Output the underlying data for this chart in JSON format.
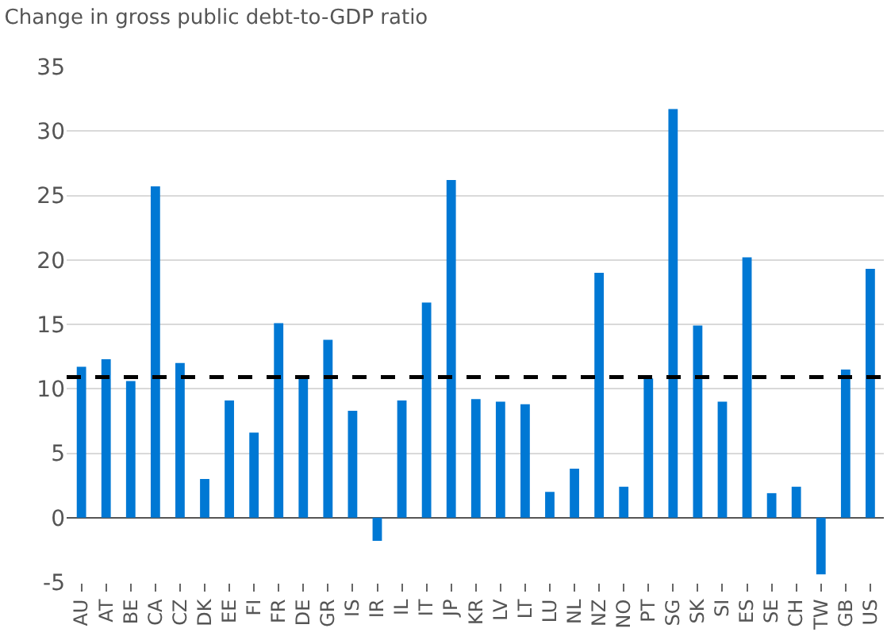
{
  "chart_data": {
    "type": "bar",
    "title": "Change in gross public debt-to-GDP ratio",
    "categories": [
      "AU",
      "AT",
      "BE",
      "CA",
      "CZ",
      "DK",
      "EE",
      "FI",
      "FR",
      "DE",
      "GR",
      "IS",
      "IR",
      "IL",
      "IT",
      "JP",
      "KR",
      "LV",
      "LT",
      "LU",
      "NL",
      "NZ",
      "NO",
      "PT",
      "SG",
      "SK",
      "SI",
      "ES",
      "SE",
      "CH",
      "TW",
      "GB",
      "US"
    ],
    "values": [
      11.7,
      12.3,
      10.6,
      25.7,
      12.0,
      3.0,
      9.1,
      6.6,
      15.1,
      10.8,
      13.8,
      8.3,
      -1.8,
      9.1,
      16.7,
      26.2,
      9.2,
      9.0,
      8.8,
      2.0,
      3.8,
      19.0,
      2.4,
      10.8,
      31.7,
      14.9,
      9.0,
      20.2,
      1.9,
      2.4,
      -4.4,
      11.5,
      19.3
    ],
    "color": "#0078d4",
    "ylim": [
      -5,
      35
    ],
    "yticks": [
      -5,
      0,
      5,
      10,
      15,
      20,
      25,
      30,
      35
    ],
    "grid": "y",
    "ref_lines": [
      {
        "axis": "y",
        "value": 10.9,
        "color": "#000000",
        "line_style": "dashed"
      }
    ]
  }
}
